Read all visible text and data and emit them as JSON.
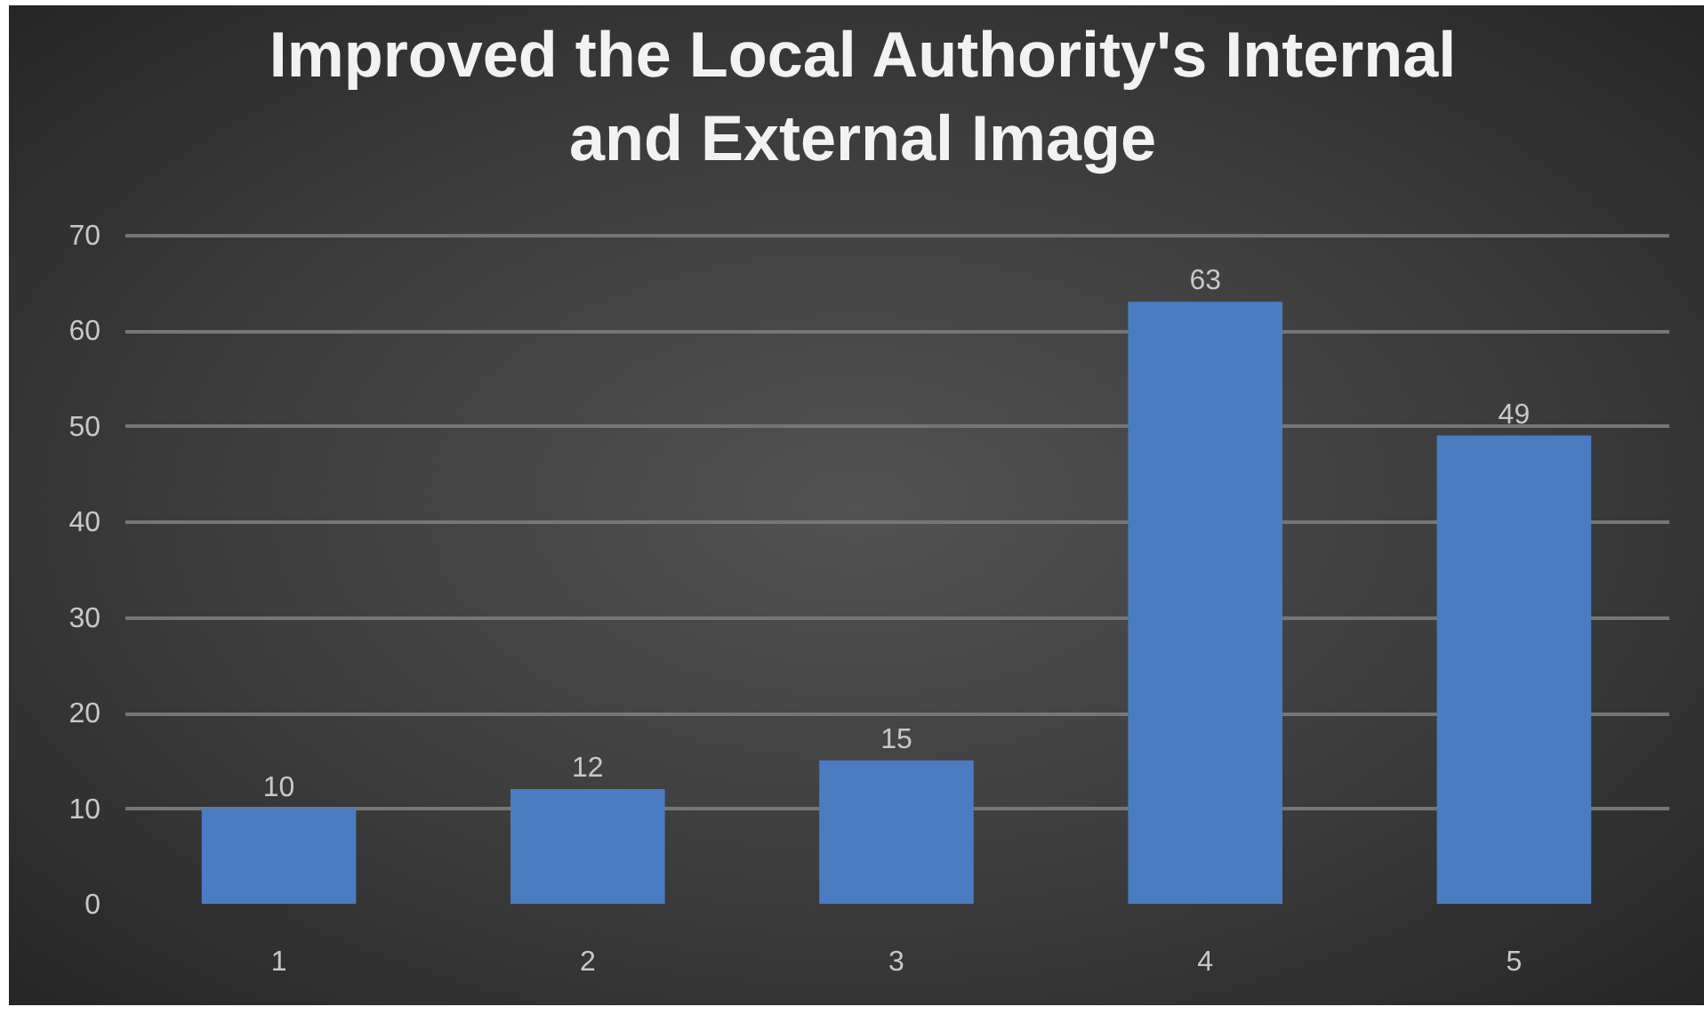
{
  "chart_data": {
    "type": "bar",
    "title": "Improved the Local Authority's Internal and External Image",
    "categories": [
      "1",
      "2",
      "3",
      "4",
      "5"
    ],
    "values": [
      10,
      12,
      15,
      63,
      49
    ],
    "color": "#4a7cc2",
    "ylim": [
      0,
      70
    ],
    "yticks": [
      0,
      10,
      20,
      30,
      40,
      50,
      60,
      70
    ],
    "grid": "y",
    "data_labels": true
  }
}
